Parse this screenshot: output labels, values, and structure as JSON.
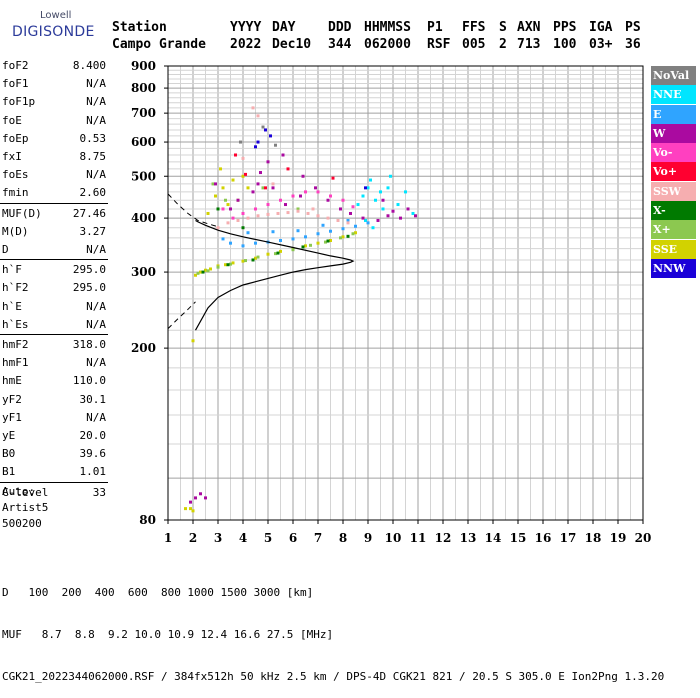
{
  "logo": {
    "brand_sub": "Lowell",
    "brand_main": "DIGISONDE"
  },
  "header": {
    "labels": [
      "Station",
      "YYYY",
      "DAY",
      "DDD",
      "HHMMSS",
      "P1",
      "FFS",
      "S",
      "AXN",
      "PPS",
      "IGA",
      "PS"
    ],
    "values": [
      "Campo Grande",
      "2022",
      "Dec10",
      "344",
      "062000",
      "RSF",
      "005",
      "2",
      "713",
      "100",
      "03+",
      "36"
    ]
  },
  "params": {
    "group1": [
      {
        "label": "foF2",
        "value": "8.400"
      },
      {
        "label": "foF1",
        "value": "N/A"
      },
      {
        "label": "foF1p",
        "value": "N/A"
      },
      {
        "label": "foE",
        "value": "N/A"
      },
      {
        "label": "foEp",
        "value": "0.53"
      },
      {
        "label": "fxI",
        "value": "8.75"
      },
      {
        "label": "foEs",
        "value": "N/A"
      },
      {
        "label": "fmin",
        "value": "2.60"
      }
    ],
    "group2": [
      {
        "label": "MUF(D)",
        "value": "27.46"
      },
      {
        "label": "M(D)",
        "value": "3.27"
      },
      {
        "label": "D",
        "value": "N/A"
      }
    ],
    "group3": [
      {
        "label": "h`F",
        "value": "295.0"
      },
      {
        "label": "h`F2",
        "value": "295.0"
      },
      {
        "label": "h`E",
        "value": "N/A"
      },
      {
        "label": "h`Es",
        "value": "N/A"
      }
    ],
    "group4": [
      {
        "label": "hmF2",
        "value": "318.0"
      },
      {
        "label": "hmF1",
        "value": "N/A"
      },
      {
        "label": "hmE",
        "value": "110.0"
      },
      {
        "label": "yF2",
        "value": "30.1"
      },
      {
        "label": "yF1",
        "value": "N/A"
      },
      {
        "label": "yE",
        "value": "20.0"
      },
      {
        "label": "B0",
        "value": "39.6"
      },
      {
        "label": "B1",
        "value": "1.01"
      }
    ],
    "group5": [
      {
        "label": "C-level",
        "value": "33"
      }
    ]
  },
  "auto": {
    "line1": "Auto:",
    "line2": "Artist5",
    "line3": "500200"
  },
  "legend": [
    {
      "label": "NoVal",
      "color": "#808080"
    },
    {
      "label": "NNE",
      "color": "#00e5ff"
    },
    {
      "label": "E",
      "color": "#2fa4ff"
    },
    {
      "label": "W",
      "color": "#aa0aa0"
    },
    {
      "label": "Vo-",
      "color": "#ff40c0"
    },
    {
      "label": "Vo+",
      "color": "#ff0030"
    },
    {
      "label": "SSW",
      "color": "#f6aeb0"
    },
    {
      "label": "X-",
      "color": "#007a00"
    },
    {
      "label": "X+",
      "color": "#8cc850"
    },
    {
      "label": "SSE",
      "color": "#d2d200"
    },
    {
      "label": "NNW",
      "color": "#1a00d8"
    }
  ],
  "footer": {
    "d_label": "D",
    "d_values": [
      "100",
      "200",
      "400",
      "600",
      "800",
      "1000",
      "1500",
      "3000"
    ],
    "d_unit": "[km]",
    "muf_label": "MUF",
    "muf_values": [
      "8.7",
      "8.8",
      "9.2",
      "10.0",
      "10.9",
      "12.4",
      "16.6",
      "27.5"
    ],
    "muf_unit": "[MHz]",
    "file_line": "CGK21_2022344062000.RSF / 384fx512h 50 kHz 2.5 km / DPS-4D CGK21 821 / 20.5 S 305.0 E Ion2Png 1.3.20"
  },
  "chart_data": {
    "type": "scatter",
    "title": "",
    "xlabel": "",
    "ylabel": "",
    "x_unit": "MHz",
    "y_unit": "km",
    "xlim": [
      1,
      20
    ],
    "ylim": [
      80,
      900
    ],
    "x_ticks": [
      1,
      2,
      3,
      4,
      5,
      6,
      7,
      8,
      9,
      10,
      11,
      12,
      13,
      14,
      15,
      16,
      17,
      18,
      19,
      20
    ],
    "y_ticks": [
      80,
      200,
      300,
      400,
      500,
      600,
      700,
      800,
      900
    ],
    "y_scale": "log",
    "grid": true,
    "legend_position": "right",
    "series": [
      {
        "name": "SSE",
        "color": "#d2d200",
        "points": [
          [
            1.7,
            85
          ],
          [
            1.9,
            85
          ],
          [
            2.0,
            84
          ],
          [
            2.0,
            208
          ],
          [
            2.1,
            295
          ],
          [
            2.3,
            300
          ],
          [
            2.5,
            303
          ],
          [
            2.7,
            305
          ],
          [
            3.0,
            310
          ],
          [
            3.3,
            312
          ],
          [
            3.6,
            315
          ],
          [
            4.0,
            318
          ],
          [
            4.5,
            323
          ],
          [
            5.0,
            330
          ],
          [
            5.5,
            335
          ],
          [
            6.0,
            340
          ],
          [
            6.5,
            345
          ],
          [
            7.0,
            350
          ],
          [
            7.5,
            355
          ],
          [
            8.0,
            362
          ],
          [
            8.5,
            370
          ],
          [
            2.6,
            410
          ],
          [
            2.9,
            450
          ],
          [
            3.2,
            470
          ],
          [
            3.4,
            430
          ],
          [
            3.6,
            490
          ],
          [
            4.2,
            470
          ],
          [
            3.1,
            520
          ],
          [
            3.8,
            440
          ],
          [
            4.0,
            500
          ]
        ]
      },
      {
        "name": "X+",
        "color": "#8cc850",
        "points": [
          [
            2.2,
            298
          ],
          [
            2.6,
            302
          ],
          [
            3.0,
            308
          ],
          [
            3.5,
            313
          ],
          [
            4.1,
            319
          ],
          [
            4.6,
            325
          ],
          [
            5.3,
            331
          ],
          [
            6.0,
            338
          ],
          [
            6.7,
            346
          ],
          [
            7.3,
            352
          ],
          [
            7.9,
            360
          ],
          [
            8.4,
            368
          ],
          [
            3.3,
            440
          ],
          [
            4.8,
            470
          ],
          [
            2.8,
            480
          ],
          [
            6.2,
            420
          ]
        ]
      },
      {
        "name": "X-",
        "color": "#007a00",
        "points": [
          [
            2.4,
            300
          ],
          [
            3.4,
            312
          ],
          [
            4.4,
            320
          ],
          [
            5.4,
            332
          ],
          [
            6.4,
            343
          ],
          [
            7.4,
            354
          ],
          [
            8.2,
            363
          ],
          [
            3.0,
            420
          ],
          [
            4.0,
            380
          ]
        ]
      },
      {
        "name": "NNE",
        "color": "#00e5ff",
        "points": [
          [
            8.6,
            430
          ],
          [
            8.8,
            450
          ],
          [
            9.0,
            470
          ],
          [
            9.1,
            490
          ],
          [
            9.3,
            440
          ],
          [
            9.5,
            460
          ],
          [
            9.6,
            420
          ],
          [
            9.8,
            470
          ],
          [
            9.9,
            500
          ],
          [
            10.2,
            430
          ],
          [
            10.5,
            460
          ],
          [
            10.8,
            410
          ],
          [
            9.2,
            380
          ],
          [
            8.9,
            395
          ]
        ]
      },
      {
        "name": "E",
        "color": "#2fa4ff",
        "points": [
          [
            3.5,
            350
          ],
          [
            4.0,
            345
          ],
          [
            4.5,
            350
          ],
          [
            5.0,
            352
          ],
          [
            5.5,
            355
          ],
          [
            6.0,
            358
          ],
          [
            6.5,
            362
          ],
          [
            7.0,
            368
          ],
          [
            7.5,
            373
          ],
          [
            8.0,
            378
          ],
          [
            8.5,
            383
          ],
          [
            9.0,
            390
          ],
          [
            3.2,
            358
          ],
          [
            4.2,
            370
          ],
          [
            5.2,
            372
          ],
          [
            6.2,
            374
          ],
          [
            7.2,
            385
          ],
          [
            8.2,
            395
          ]
        ]
      },
      {
        "name": "W",
        "color": "#aa0aa0",
        "points": [
          [
            1.9,
            88
          ],
          [
            2.1,
            90
          ],
          [
            2.3,
            92
          ],
          [
            2.5,
            90
          ],
          [
            2.9,
            480
          ],
          [
            3.5,
            420
          ],
          [
            3.8,
            440
          ],
          [
            4.4,
            460
          ],
          [
            4.6,
            480
          ],
          [
            4.7,
            510
          ],
          [
            5.2,
            470
          ],
          [
            5.7,
            430
          ],
          [
            6.3,
            450
          ],
          [
            6.9,
            470
          ],
          [
            7.4,
            440
          ],
          [
            7.9,
            420
          ],
          [
            8.3,
            410
          ],
          [
            8.8,
            400
          ],
          [
            9.4,
            395
          ],
          [
            9.8,
            405
          ],
          [
            10.0,
            415
          ],
          [
            10.3,
            400
          ],
          [
            10.6,
            420
          ],
          [
            10.9,
            405
          ],
          [
            9.6,
            440
          ],
          [
            6.4,
            500
          ],
          [
            5.0,
            540
          ],
          [
            5.6,
            560
          ]
        ]
      },
      {
        "name": "Vo-",
        "color": "#ff40c0",
        "points": [
          [
            3.2,
            420
          ],
          [
            3.6,
            400
          ],
          [
            4.0,
            410
          ],
          [
            4.5,
            420
          ],
          [
            5.0,
            430
          ],
          [
            5.5,
            440
          ],
          [
            6.0,
            450
          ],
          [
            6.5,
            460
          ],
          [
            7.0,
            460
          ],
          [
            7.5,
            450
          ],
          [
            8.0,
            440
          ],
          [
            8.4,
            425
          ]
        ]
      },
      {
        "name": "Vo+",
        "color": "#ff0030",
        "points": [
          [
            4.1,
            505
          ],
          [
            4.9,
            470
          ],
          [
            5.8,
            520
          ],
          [
            7.6,
            495
          ],
          [
            3.7,
            560
          ]
        ]
      },
      {
        "name": "SSW",
        "color": "#f6aeb0",
        "points": [
          [
            3.0,
            380
          ],
          [
            3.4,
            390
          ],
          [
            3.8,
            395
          ],
          [
            4.2,
            400
          ],
          [
            4.6,
            405
          ],
          [
            5.0,
            408
          ],
          [
            5.4,
            410
          ],
          [
            5.8,
            412
          ],
          [
            6.2,
            415
          ],
          [
            6.6,
            410
          ],
          [
            7.0,
            405
          ],
          [
            7.4,
            400
          ],
          [
            7.8,
            395
          ],
          [
            8.2,
            390
          ],
          [
            4.4,
            720
          ],
          [
            4.6,
            690
          ],
          [
            4.0,
            550
          ],
          [
            5.2,
            480
          ],
          [
            6.8,
            420
          ]
        ]
      },
      {
        "name": "NNW",
        "color": "#1a00d8",
        "points": [
          [
            4.6,
            600
          ],
          [
            4.9,
            640
          ],
          [
            5.1,
            620
          ],
          [
            4.5,
            585
          ],
          [
            8.9,
            470
          ]
        ]
      },
      {
        "name": "NoVal",
        "color": "#808080",
        "points": [
          [
            4.8,
            650
          ],
          [
            3.9,
            600
          ],
          [
            5.3,
            590
          ]
        ]
      }
    ],
    "profile_solid": [
      [
        2.1,
        220
      ],
      [
        2.6,
        248
      ],
      [
        3.0,
        262
      ],
      [
        3.5,
        272
      ],
      [
        4.0,
        280
      ],
      [
        4.5,
        285
      ],
      [
        5.0,
        290
      ],
      [
        5.5,
        295
      ],
      [
        6.0,
        300
      ],
      [
        6.5,
        304
      ],
      [
        7.0,
        307
      ],
      [
        7.5,
        310
      ],
      [
        8.0,
        313
      ],
      [
        8.3,
        316
      ],
      [
        8.4,
        318
      ],
      [
        8.3,
        320
      ],
      [
        8.0,
        323
      ],
      [
        7.5,
        327
      ],
      [
        7.0,
        332
      ],
      [
        6.0,
        342
      ],
      [
        5.0,
        352
      ],
      [
        4.0,
        362
      ],
      [
        3.5,
        368
      ],
      [
        3.0,
        375
      ],
      [
        2.5,
        385
      ],
      [
        2.2,
        392
      ],
      [
        2.1,
        395
      ]
    ],
    "profile_dashed_lower": [
      [
        1.0,
        222
      ],
      [
        1.4,
        234
      ],
      [
        1.8,
        246
      ],
      [
        2.1,
        256
      ]
    ],
    "profile_dashed_upper": [
      [
        1.0,
        455
      ],
      [
        1.4,
        430
      ],
      [
        1.8,
        410
      ],
      [
        2.2,
        395
      ],
      [
        2.6,
        388
      ],
      [
        3.0,
        382
      ]
    ]
  }
}
